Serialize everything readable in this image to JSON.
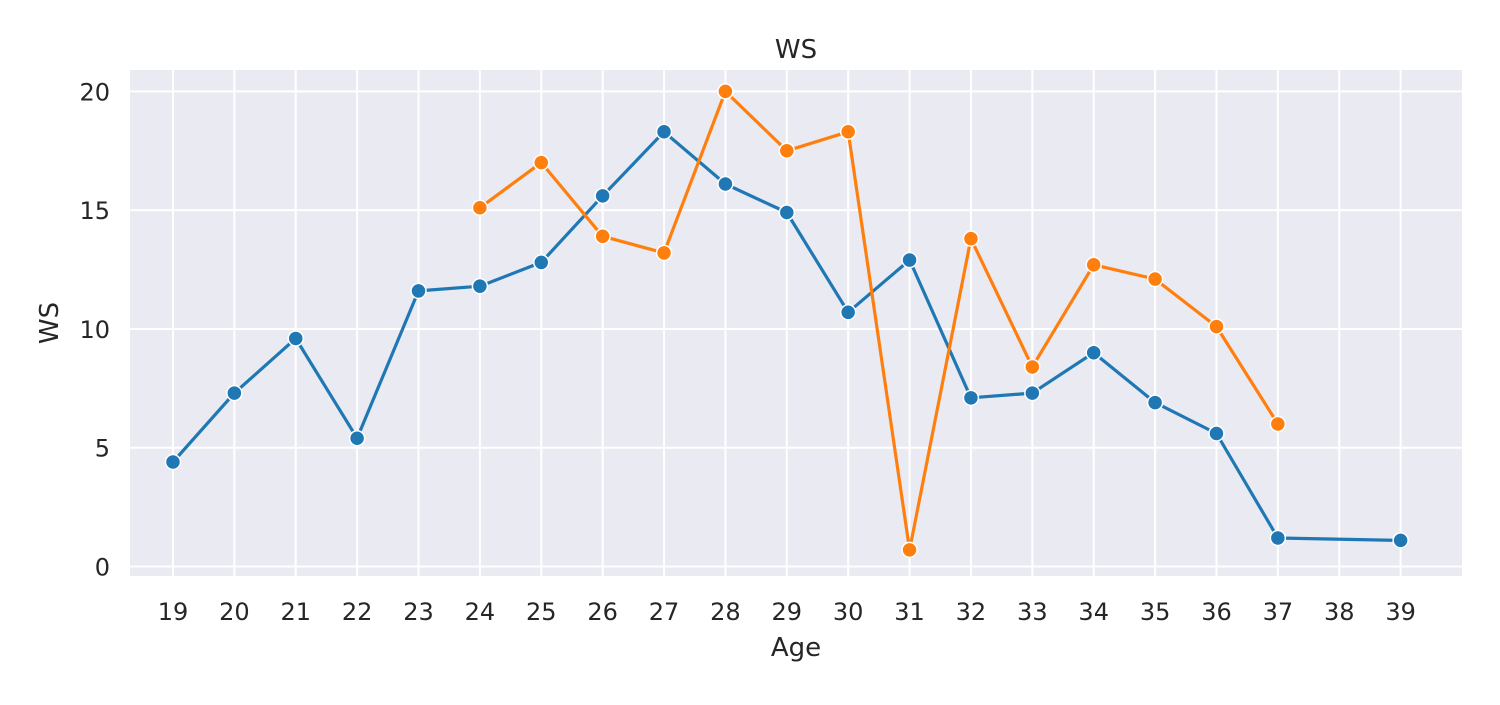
{
  "chart_data": {
    "type": "line",
    "title": "WS",
    "xlabel": "Age",
    "ylabel": "WS",
    "x": [
      19,
      20,
      21,
      22,
      23,
      24,
      25,
      26,
      27,
      28,
      29,
      30,
      31,
      32,
      33,
      34,
      35,
      36,
      37,
      38,
      39
    ],
    "xlim": [
      18.3,
      40.0
    ],
    "ylim": [
      -0.4,
      20.9
    ],
    "y_ticks": [
      0,
      5,
      10,
      15,
      20
    ],
    "grid": true,
    "background": "#eaeaf2",
    "grid_color": "#ffffff",
    "series": [
      {
        "color": "#1f77b4",
        "marker": "circle",
        "points": [
          [
            19,
            4.4
          ],
          [
            20,
            7.3
          ],
          [
            21,
            9.6
          ],
          [
            22,
            5.4
          ],
          [
            23,
            11.6
          ],
          [
            24,
            11.8
          ],
          [
            25,
            12.8
          ],
          [
            26,
            15.6
          ],
          [
            27,
            18.3
          ],
          [
            28,
            16.1
          ],
          [
            29,
            14.9
          ],
          [
            30,
            10.7
          ],
          [
            31,
            12.9
          ],
          [
            32,
            7.1
          ],
          [
            33,
            7.3
          ],
          [
            34,
            9.0
          ],
          [
            35,
            6.9
          ],
          [
            36,
            5.6
          ],
          [
            37,
            1.2
          ],
          [
            39,
            1.1
          ]
        ]
      },
      {
        "color": "#ff7f0e",
        "marker": "circle",
        "points": [
          [
            24,
            15.1
          ],
          [
            25,
            17.0
          ],
          [
            26,
            13.9
          ],
          [
            27,
            13.2
          ],
          [
            28,
            20.0
          ],
          [
            29,
            17.5
          ],
          [
            30,
            18.3
          ],
          [
            31,
            0.7
          ],
          [
            32,
            13.8
          ],
          [
            33,
            8.4
          ],
          [
            34,
            12.7
          ],
          [
            35,
            12.1
          ],
          [
            36,
            10.1
          ],
          [
            37,
            6.0
          ]
        ]
      }
    ]
  }
}
